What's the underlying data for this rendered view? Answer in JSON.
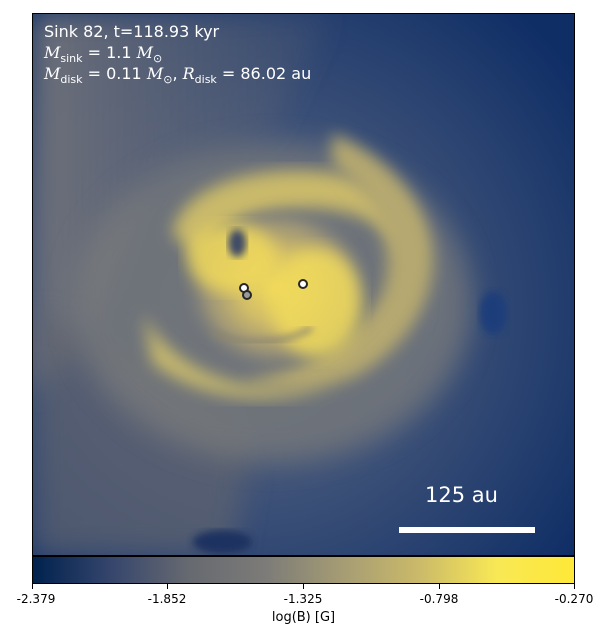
{
  "overlay": {
    "title": "Sink 82, t=118.93 kyr",
    "msink_symbol": "M",
    "msink_sub": "sink",
    "msink_value": " = 1.1 ",
    "msink_unit": "M",
    "msink_unit_sub": "⊙",
    "mdisk_symbol": "M",
    "mdisk_sub": "disk",
    "mdisk_value": " = 0.11 ",
    "mdisk_unit": "M",
    "mdisk_unit_sub": "⊙",
    "mdisk_sep": ", ",
    "rdisk_symbol": "R",
    "rdisk_sub": "disk",
    "rdisk_value": " = 86.02 au"
  },
  "scale_bar": {
    "label": "125 au"
  },
  "colorbar": {
    "ticks": [
      "-2.379",
      "-1.852",
      "-1.325",
      "-0.798",
      "-0.270"
    ],
    "label": "log(B) [G]",
    "colors": [
      "#00224e",
      "#35456c",
      "#666970",
      "#7c7b78",
      "#a59c74",
      "#cbba69",
      "#f8e855",
      "#fee838"
    ]
  },
  "colors": {
    "background_dark": "#17366a",
    "background_mid": "#2f4b7c",
    "grey": "#7a7c7c",
    "yellow": "#e8cf5a"
  },
  "sinks": [
    {
      "name": "sink-a",
      "fill": "white"
    },
    {
      "name": "sink-b",
      "fill": "grey"
    },
    {
      "name": "sink-c",
      "fill": "white"
    }
  ]
}
